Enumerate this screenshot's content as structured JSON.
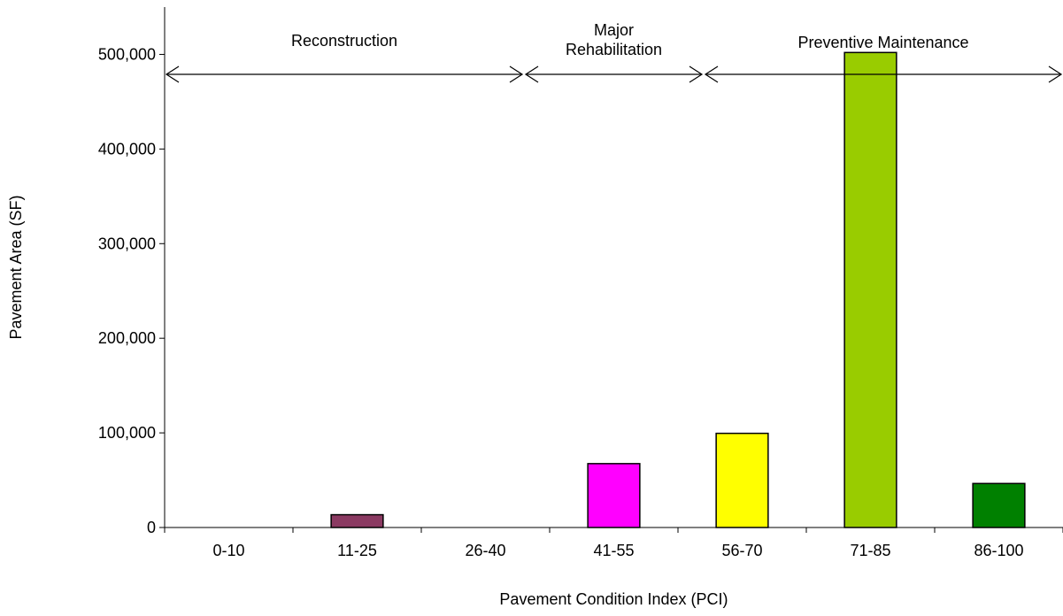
{
  "chart_data": {
    "type": "bar",
    "categories": [
      "0-10",
      "11-25",
      "26-40",
      "41-55",
      "56-70",
      "71-85",
      "86-100"
    ],
    "values": [
      0,
      13500,
      0,
      67500,
      99500,
      502000,
      46500
    ],
    "colors": [
      "#8B3A62",
      "#8B3A62",
      "#8B3A62",
      "#FF00FF",
      "#FFFF00",
      "#99CC00",
      "#008000"
    ],
    "title": "",
    "xlabel": "Pavement Condition Index (PCI)",
    "ylabel": "Pavement Area (SF)",
    "ylim": [
      0,
      550000
    ],
    "yticks": [
      {
        "value": 0,
        "label": "0"
      },
      {
        "value": 100000,
        "label": "100,000"
      },
      {
        "value": 200000,
        "label": "200,000"
      },
      {
        "value": 300000,
        "label": "300,000"
      },
      {
        "value": 400000,
        "label": "400,000"
      },
      {
        "value": 500000,
        "label": "500,000"
      }
    ],
    "grid": false,
    "legend": "none",
    "annotations": [
      {
        "name": "reconstruction",
        "lines": [
          "Reconstruction"
        ],
        "from": 0,
        "to": 2.8
      },
      {
        "name": "major-rehabilitation",
        "lines": [
          "Major",
          "Rehabilitation"
        ],
        "from": 2.8,
        "to": 4.2
      },
      {
        "name": "preventive-maintenance",
        "lines": [
          "Preventive Maintenance"
        ],
        "from": 4.2,
        "to": 7
      }
    ]
  }
}
